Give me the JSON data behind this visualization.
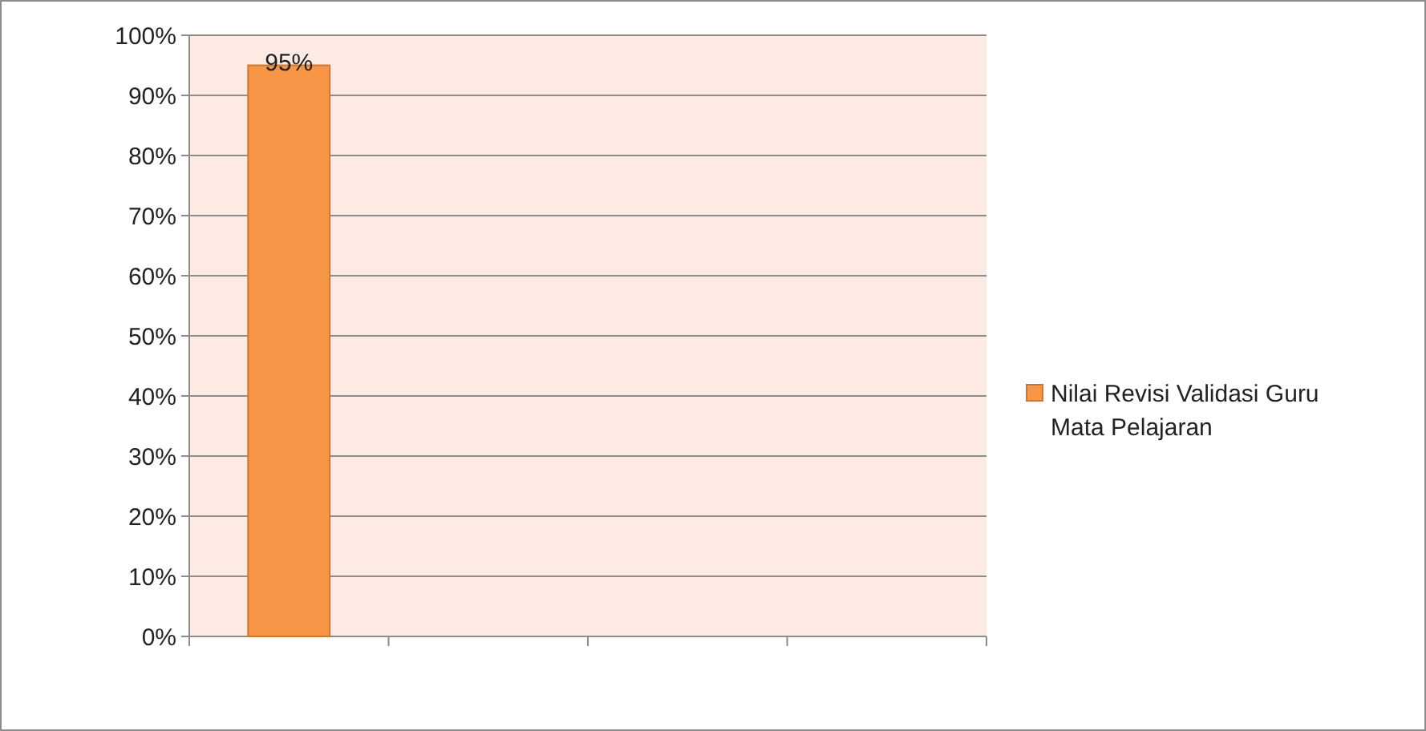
{
  "chart_data": {
    "type": "bar",
    "categories": [
      null,
      null,
      null,
      null
    ],
    "series": [
      {
        "name": "Nilai Revisi Validasi Guru Mata Pelajaran",
        "color": "#f79646",
        "values": [
          95,
          null,
          null,
          null
        ]
      }
    ],
    "value_labels": [
      "95%",
      null,
      null,
      null
    ],
    "ylim": [
      0,
      100
    ],
    "yticks": [
      {
        "value": 0,
        "label": "0%"
      },
      {
        "value": 10,
        "label": "10%"
      },
      {
        "value": 20,
        "label": "20%"
      },
      {
        "value": 30,
        "label": "30%"
      },
      {
        "value": 40,
        "label": "40%"
      },
      {
        "value": 50,
        "label": "50%"
      },
      {
        "value": 60,
        "label": "60%"
      },
      {
        "value": 70,
        "label": "70%"
      },
      {
        "value": 80,
        "label": "80%"
      },
      {
        "value": 90,
        "label": "90%"
      },
      {
        "value": 100,
        "label": "100%"
      }
    ],
    "grid": "y",
    "legend": "right"
  }
}
